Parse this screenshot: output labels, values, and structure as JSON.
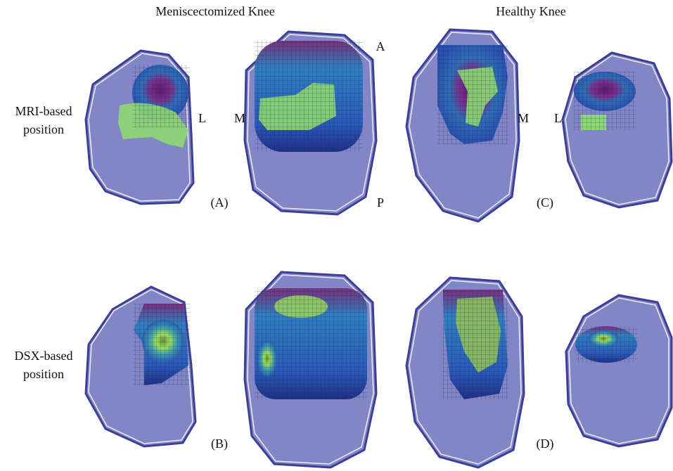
{
  "column_headers": [
    "Meniscectomized Knee",
    "Healthy Knee"
  ],
  "row_labels": [
    [
      "MRI-based",
      "position"
    ],
    [
      "DSX-based",
      "position"
    ]
  ],
  "panel_labels": [
    "(A)",
    "(B)",
    "(C)",
    "(D)"
  ],
  "orientation_labels": {
    "anterior": "A",
    "posterior": "P",
    "left_lateral": "L",
    "left_medial": "M",
    "right_medial": "M",
    "right_lateral": "L"
  }
}
